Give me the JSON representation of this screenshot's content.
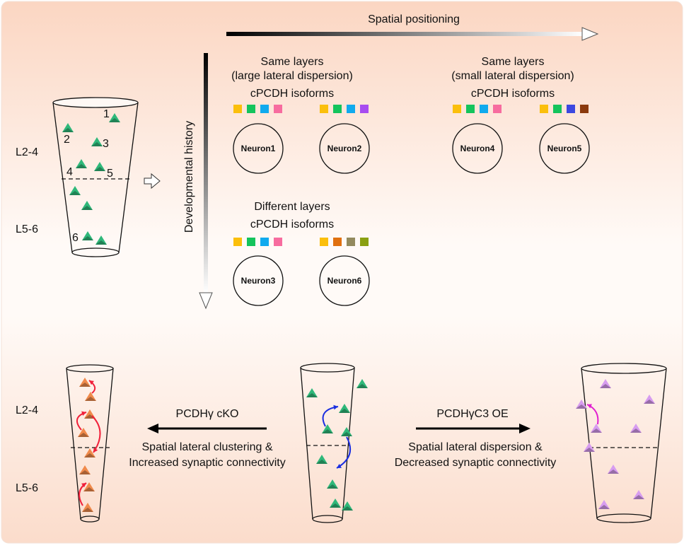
{
  "axes": {
    "horizontal_label": "Spatial positioning",
    "vertical_label": "Developmental history"
  },
  "layers": {
    "upper": "L2-4",
    "lower": "L5-6"
  },
  "cup_numbers": [
    "1",
    "2",
    "3",
    "4",
    "5",
    "6"
  ],
  "groups": {
    "same_large": {
      "title": "Same layers",
      "subtitle": "(large lateral dispersion)",
      "isoforms": "cPCDH isoforms"
    },
    "same_small": {
      "title": "Same layers",
      "subtitle": "(small lateral dispersion)",
      "isoforms": "cPCDH isoforms"
    },
    "different": {
      "title": "Different layers",
      "isoforms": "cPCDH isoforms"
    }
  },
  "neurons": [
    {
      "label": "Neuron1",
      "isoform_colors": [
        "#fbbf0c",
        "#14c45c",
        "#10aaee",
        "#f76c9f"
      ]
    },
    {
      "label": "Neuron2",
      "isoform_colors": [
        "#fbbf0c",
        "#14c45c",
        "#10aaee",
        "#a84cf0"
      ]
    },
    {
      "label": "Neuron4",
      "isoform_colors": [
        "#fbbf0c",
        "#14c45c",
        "#10aaee",
        "#f76c9f"
      ]
    },
    {
      "label": "Neuron5",
      "isoform_colors": [
        "#fbbf0c",
        "#14c45c",
        "#3c48e0",
        "#8b3a0e"
      ]
    },
    {
      "label": "Neuron3",
      "isoform_colors": [
        "#fbbf0c",
        "#14c45c",
        "#10aaee",
        "#f76c9f"
      ]
    },
    {
      "label": "Neuron6",
      "isoform_colors": [
        "#fbbf0c",
        "#e0700f",
        "#938a5e",
        "#8aa012"
      ]
    }
  ],
  "bottom": {
    "left": {
      "condition": "PCDHγ cKO",
      "line1": "Spatial lateral clustering &",
      "line2": "Increased synaptic connectivity"
    },
    "right": {
      "condition": "PCDHγC3 OE",
      "line1": "Spatial lateral dispersion &",
      "line2": "Decreased synaptic connectivity"
    }
  },
  "colors": {
    "wildtype_neuron": "#2fb87a",
    "cko_neuron": "#f08a4b",
    "oe_neuron": "#d79cf0",
    "cko_arrow": "#f0203a",
    "wt_arrow": "#1a2ee0",
    "oe_arrow": "#e020d0",
    "background": "#fbdccb"
  }
}
